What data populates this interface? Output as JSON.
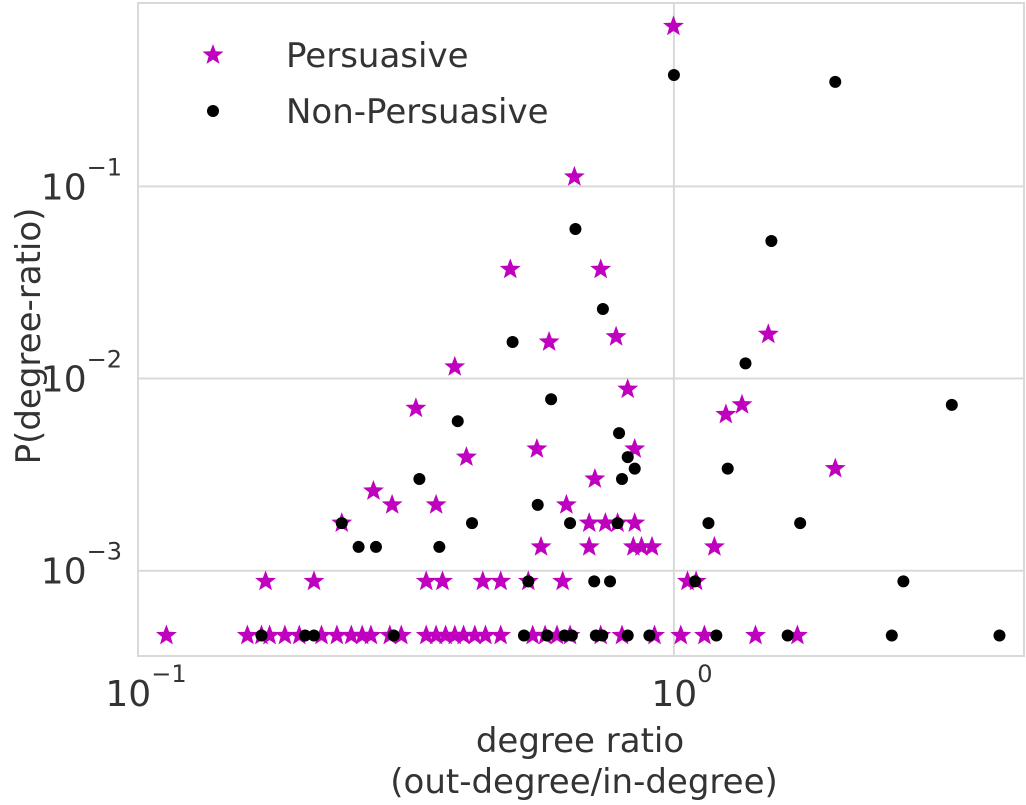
{
  "chart_data": {
    "type": "scatter",
    "title": "",
    "xlabel_lines": [
      "degree ratio",
      "(out-degree/in-degree)"
    ],
    "ylabel": "P(degree-ratio)",
    "x_scale": "log",
    "y_scale": "log",
    "xlim": [
      0.1,
      4.5
    ],
    "ylim": [
      0.00036,
      0.9
    ],
    "x_ticks": [
      {
        "value": 0.1,
        "base": "10",
        "exp": "−1"
      },
      {
        "value": 1,
        "base": "10",
        "exp": "0"
      }
    ],
    "y_ticks": [
      {
        "value": 0.001,
        "base": "10",
        "exp": "−3"
      },
      {
        "value": 0.01,
        "base": "10",
        "exp": "−2"
      },
      {
        "value": 0.1,
        "base": "10",
        "exp": "−1"
      }
    ],
    "grid": true,
    "legend": {
      "placement": "top-left"
    },
    "colors": {
      "persuasive": "#bf00bf",
      "non_persuasive": "#000000",
      "grid": "#d9d9d9",
      "text": "#333333"
    },
    "series": [
      {
        "name": "Persuasive",
        "marker": "star",
        "points": [
          [
            0.113,
            0.00046
          ],
          [
            0.16,
            0.00046
          ],
          [
            0.17,
            0.00046
          ],
          [
            0.176,
            0.00046
          ],
          [
            0.188,
            0.00046
          ],
          [
            0.2,
            0.00046
          ],
          [
            0.22,
            0.00046
          ],
          [
            0.235,
            0.00046
          ],
          [
            0.25,
            0.00046
          ],
          [
            0.262,
            0.00046
          ],
          [
            0.272,
            0.00046
          ],
          [
            0.295,
            0.00046
          ],
          [
            0.31,
            0.00046
          ],
          [
            0.345,
            0.00046
          ],
          [
            0.36,
            0.00046
          ],
          [
            0.375,
            0.00046
          ],
          [
            0.39,
            0.00046
          ],
          [
            0.405,
            0.00046
          ],
          [
            0.425,
            0.00046
          ],
          [
            0.445,
            0.00046
          ],
          [
            0.475,
            0.00046
          ],
          [
            0.545,
            0.00046
          ],
          [
            0.575,
            0.00046
          ],
          [
            0.605,
            0.00046
          ],
          [
            0.64,
            0.00046
          ],
          [
            0.73,
            0.00046
          ],
          [
            0.8,
            0.00046
          ],
          [
            0.92,
            0.00046
          ],
          [
            1.03,
            0.00046
          ],
          [
            1.14,
            0.00046
          ],
          [
            1.42,
            0.00046
          ],
          [
            1.7,
            0.00046
          ],
          [
            0.173,
            0.00088
          ],
          [
            0.213,
            0.00088
          ],
          [
            0.345,
            0.00088
          ],
          [
            0.37,
            0.00088
          ],
          [
            0.44,
            0.00088
          ],
          [
            0.475,
            0.00088
          ],
          [
            0.535,
            0.00088
          ],
          [
            0.62,
            0.00088
          ],
          [
            1.06,
            0.00088
          ],
          [
            1.1,
            0.00088
          ],
          [
            0.565,
            0.00133
          ],
          [
            0.695,
            0.00133
          ],
          [
            0.84,
            0.00133
          ],
          [
            0.87,
            0.00133
          ],
          [
            0.91,
            0.00133
          ],
          [
            1.19,
            0.00133
          ],
          [
            0.24,
            0.00177
          ],
          [
            0.695,
            0.00177
          ],
          [
            0.745,
            0.00177
          ],
          [
            0.785,
            0.00177
          ],
          [
            0.845,
            0.00177
          ],
          [
            0.275,
            0.0026
          ],
          [
            0.298,
            0.0022
          ],
          [
            0.36,
            0.0022
          ],
          [
            0.63,
            0.0022
          ],
          [
            0.712,
            0.003
          ],
          [
            0.41,
            0.0039
          ],
          [
            0.555,
            0.0043
          ],
          [
            0.845,
            0.0043
          ],
          [
            2.0,
            0.0034
          ],
          [
            0.33,
            0.007
          ],
          [
            1.25,
            0.0065
          ],
          [
            1.34,
            0.0073
          ],
          [
            0.82,
            0.0088
          ],
          [
            0.39,
            0.0115
          ],
          [
            0.585,
            0.0155
          ],
          [
            0.78,
            0.0165
          ],
          [
            1.5,
            0.017
          ],
          [
            0.495,
            0.037
          ],
          [
            0.73,
            0.037
          ],
          [
            0.652,
            0.112
          ],
          [
            0.998,
            0.68
          ]
        ]
      },
      {
        "name": "Non-Persuasive",
        "marker": "circle",
        "points": [
          [
            0.17,
            0.00046
          ],
          [
            0.205,
            0.00046
          ],
          [
            0.213,
            0.00046
          ],
          [
            0.3,
            0.00046
          ],
          [
            0.525,
            0.00046
          ],
          [
            0.58,
            0.00046
          ],
          [
            0.625,
            0.00046
          ],
          [
            0.645,
            0.00046
          ],
          [
            0.715,
            0.00046
          ],
          [
            0.735,
            0.00046
          ],
          [
            0.82,
            0.00046
          ],
          [
            0.9,
            0.00046
          ],
          [
            1.2,
            0.00046
          ],
          [
            1.63,
            0.00046
          ],
          [
            2.55,
            0.00046
          ],
          [
            4.05,
            0.00046
          ],
          [
            0.535,
            0.00088
          ],
          [
            0.71,
            0.00088
          ],
          [
            0.76,
            0.00088
          ],
          [
            1.095,
            0.00088
          ],
          [
            2.68,
            0.00088
          ],
          [
            0.258,
            0.00133
          ],
          [
            0.278,
            0.00133
          ],
          [
            0.365,
            0.00133
          ],
          [
            0.24,
            0.00177
          ],
          [
            0.42,
            0.00177
          ],
          [
            0.64,
            0.00177
          ],
          [
            0.785,
            0.00177
          ],
          [
            1.16,
            0.00177
          ],
          [
            1.72,
            0.00177
          ],
          [
            0.557,
            0.0022
          ],
          [
            0.335,
            0.003
          ],
          [
            0.8,
            0.003
          ],
          [
            0.845,
            0.0034
          ],
          [
            1.26,
            0.0034
          ],
          [
            0.82,
            0.0039
          ],
          [
            0.79,
            0.0052
          ],
          [
            0.395,
            0.006
          ],
          [
            0.59,
            0.0078
          ],
          [
            3.3,
            0.0073
          ],
          [
            1.36,
            0.012
          ],
          [
            0.5,
            0.0155
          ],
          [
            0.737,
            0.023
          ],
          [
            0.655,
            0.06
          ],
          [
            1.52,
            0.052
          ],
          [
            1.0,
            0.38
          ],
          [
            2.0,
            0.35
          ]
        ]
      }
    ]
  }
}
